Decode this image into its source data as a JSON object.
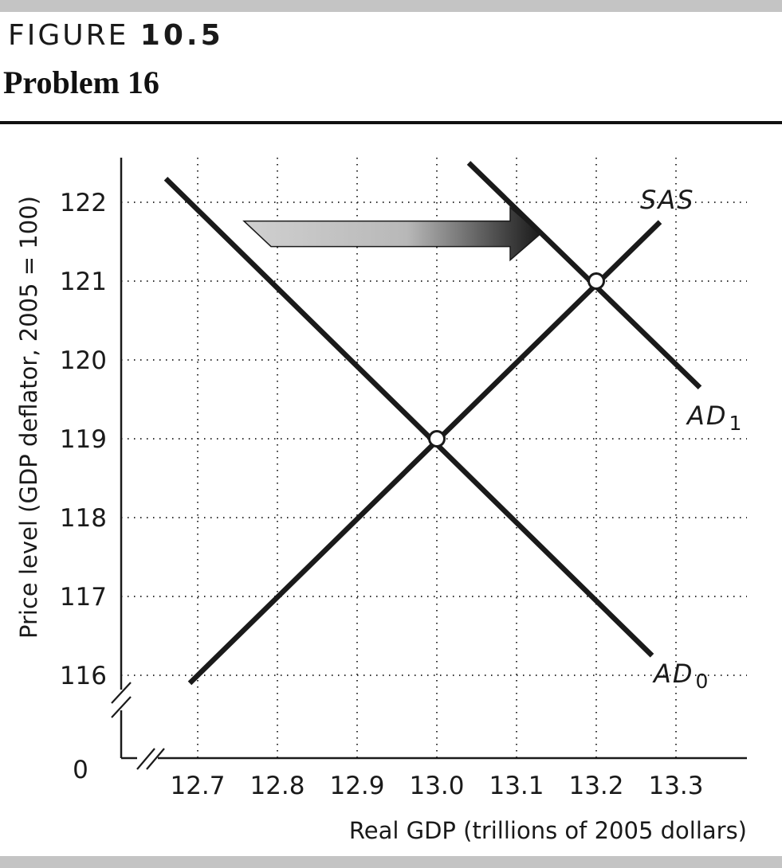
{
  "header": {
    "figure_prefix": "FIGURE",
    "figure_number": "10.5",
    "title": "Problem 16"
  },
  "chart_data": {
    "type": "line",
    "xlabel": "Real GDP (trillions of 2005 dollars)",
    "ylabel": "Price level (GDP deflator, 2005 = 100)",
    "origin_label": "0",
    "x_ticks": [
      12.7,
      12.8,
      12.9,
      13.0,
      13.1,
      13.2,
      13.3
    ],
    "x_tick_labels": [
      "12.7",
      "12.8",
      "12.9",
      "13.0",
      "13.1",
      "13.2",
      "13.3"
    ],
    "y_ticks": [
      116,
      117,
      118,
      119,
      120,
      121,
      122
    ],
    "y_tick_labels": [
      "116",
      "117",
      "118",
      "119",
      "120",
      "121",
      "122"
    ],
    "xlim": [
      12.6,
      13.39
    ],
    "ylim": [
      115.1,
      122.5
    ],
    "axis_breaks": true,
    "grid": "dotted",
    "series": [
      {
        "name": "SAS",
        "label_main": "SAS",
        "label_sub": "",
        "x": [
          12.69,
          13.28
        ],
        "y": [
          115.9,
          121.75
        ]
      },
      {
        "name": "AD0",
        "label_main": "AD",
        "label_sub": "0",
        "x": [
          12.66,
          13.27
        ],
        "y": [
          122.3,
          116.25
        ]
      },
      {
        "name": "AD1",
        "label_main": "AD",
        "label_sub": "1",
        "x": [
          13.04,
          13.33
        ],
        "y": [
          122.5,
          119.65
        ]
      }
    ],
    "equilibrium_points": [
      {
        "x": 13.0,
        "y": 119
      },
      {
        "x": 13.2,
        "y": 121
      }
    ],
    "shift_arrow": {
      "from": {
        "x": 12.76,
        "y": 121.6
      },
      "to": {
        "x": 13.13,
        "y": 121.6
      }
    },
    "colors": {
      "line": "#1a1a1a",
      "grid": "#333333",
      "arrow_light": "#d0d0d0",
      "arrow_dark": "#1a1a1a"
    }
  }
}
